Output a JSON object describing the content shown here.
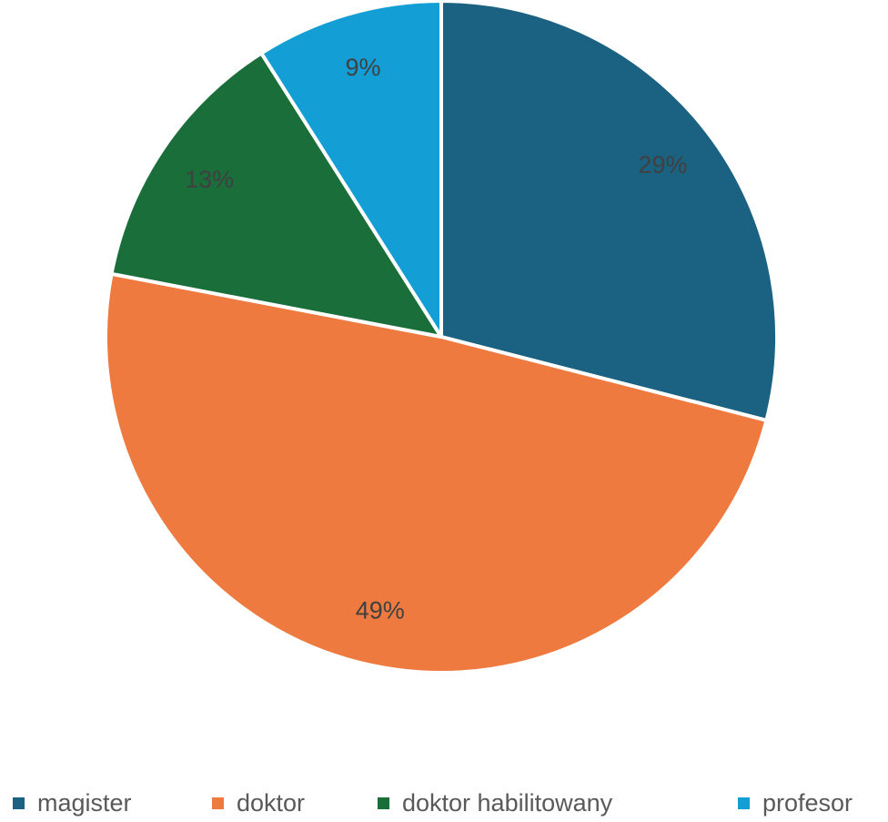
{
  "chart_data": {
    "type": "pie",
    "categories": [
      "magister",
      "doktor",
      "doktor habilitowany",
      "profesor"
    ],
    "values": [
      29,
      49,
      13,
      9
    ],
    "labels": [
      "29%",
      "49%",
      "13%",
      "9%"
    ],
    "colors": [
      "#1B6282",
      "#EE7A40",
      "#1A6E3A",
      "#139FD5"
    ],
    "start_angle": "top",
    "direction": "clockwise",
    "legend_position": "bottom"
  }
}
